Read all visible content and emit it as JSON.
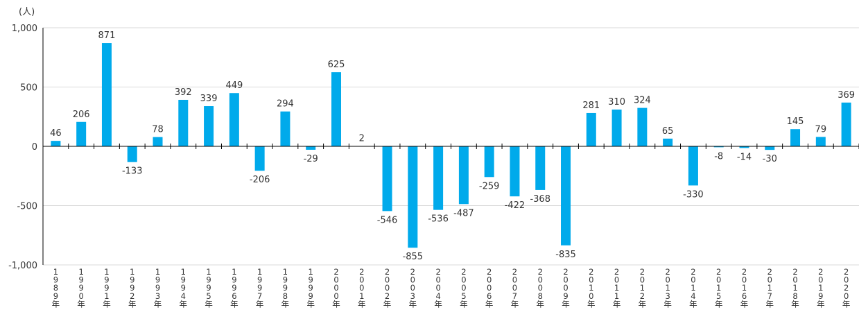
{
  "chart_data": {
    "type": "bar",
    "unit_label": "(人)",
    "categories": [
      "1989年",
      "1990年",
      "1991年",
      "1992年",
      "1993年",
      "1994年",
      "1995年",
      "1996年",
      "1997年",
      "1998年",
      "1999年",
      "2000年",
      "2001年",
      "2002年",
      "2003年",
      "2004年",
      "2005年",
      "2006年",
      "2007年",
      "2008年",
      "2009年",
      "2010年",
      "2011年",
      "2012年",
      "2013年",
      "2014年",
      "2015年",
      "2016年",
      "2017年",
      "2018年",
      "2019年",
      "2020年"
    ],
    "values": [
      46,
      206,
      871,
      -133,
      78,
      392,
      339,
      449,
      -206,
      294,
      -29,
      625,
      2,
      -546,
      -855,
      -536,
      -487,
      -259,
      -422,
      -368,
      -835,
      281,
      310,
      324,
      65,
      -330,
      -8,
      -14,
      -30,
      145,
      79,
      369
    ],
    "value_labels": [
      "46",
      "206",
      "871",
      "-133",
      "78",
      "392",
      "339",
      "449",
      "-206",
      "294",
      "-29",
      "625",
      "2",
      "-546",
      "-855",
      "-536",
      "-487",
      "-259",
      "-422",
      "-368",
      "-835",
      "281",
      "310",
      "324",
      "65",
      "-330",
      "-8",
      "-14",
      "-30",
      "145",
      "79",
      "369"
    ],
    "ylim": [
      -1000,
      1000
    ],
    "yticks": [
      1000,
      500,
      0,
      -500,
      -1000
    ],
    "ytick_labels": [
      "1,000",
      "500",
      "0",
      "-500",
      "-1,000"
    ],
    "grid": true,
    "legend": "none",
    "colors": {
      "bar": "#00AAEB",
      "grid": "#D9D9D9",
      "axis": "#000000",
      "text": "#333333"
    }
  }
}
